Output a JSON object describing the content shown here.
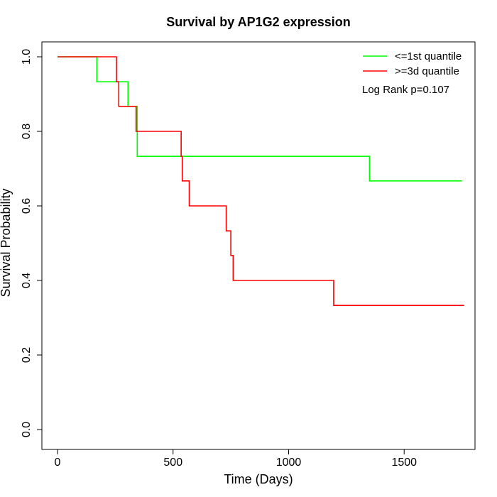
{
  "chart_data": {
    "type": "line",
    "step": true,
    "title": "Survival by AP1G2 expression",
    "xlabel": "Time (Days)",
    "ylabel": "Survival Probability",
    "xlim": [
      0,
      1800
    ],
    "ylim": [
      0,
      1.0
    ],
    "xticks": [
      0,
      500,
      1000,
      1500
    ],
    "xtick_labels": [
      "0",
      "500",
      "1000",
      "1500"
    ],
    "yticks": [
      0.0,
      0.2,
      0.4,
      0.6,
      0.8,
      1.0
    ],
    "ytick_labels": [
      "0.0",
      "0.2",
      "0.4",
      "0.6",
      "0.8",
      "1.0"
    ],
    "grid": false,
    "legend_position": "top-right",
    "annotation": "Log Rank p=0.107",
    "series": [
      {
        "name": "<=1st quantile",
        "color": "#00ff00",
        "x": [
          0,
          170,
          305,
          345,
          1350,
          1750
        ],
        "y": [
          1.0,
          0.933,
          0.867,
          0.733,
          0.667,
          0.667
        ]
      },
      {
        "name": ">=3d quantile",
        "color": "#ff0000",
        "x": [
          0,
          255,
          265,
          340,
          535,
          540,
          570,
          730,
          750,
          760,
          1195,
          1760
        ],
        "y": [
          1.0,
          0.933,
          0.867,
          0.8,
          0.733,
          0.667,
          0.6,
          0.533,
          0.467,
          0.4,
          0.333,
          0.333
        ]
      }
    ]
  }
}
